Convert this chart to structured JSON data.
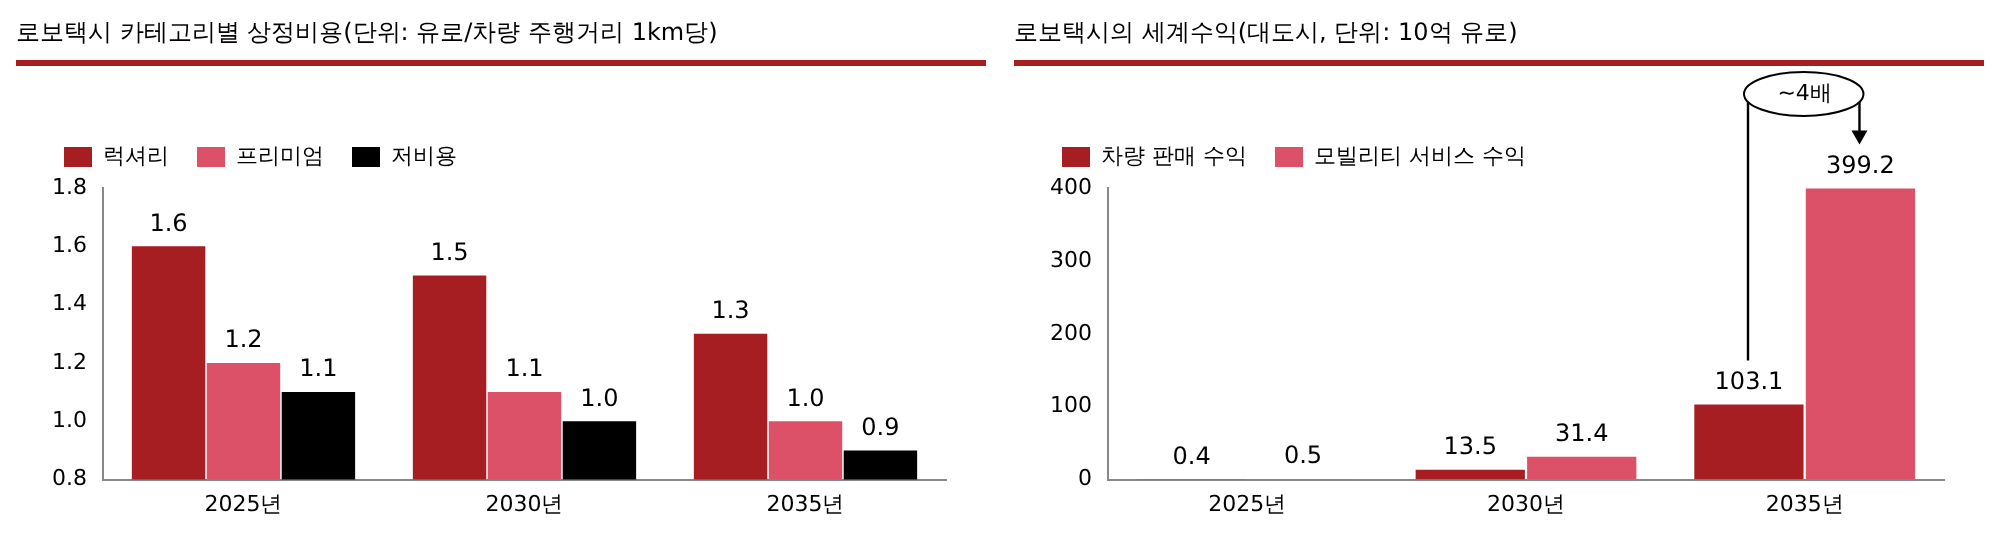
{
  "chart_data": [
    {
      "type": "bar",
      "title": "로보택시 카테고리별 상정비용(단위: 유로/차량 주행거리 1km당)",
      "categories": [
        "2025년",
        "2030년",
        "2035년"
      ],
      "series": [
        {
          "name": "럭셔리",
          "color": "#a61e22",
          "values": [
            1.6,
            1.5,
            1.3
          ],
          "value_labels": [
            "1.6",
            "1.5",
            "1.3"
          ]
        },
        {
          "name": "프리미엄",
          "color": "#dc5068",
          "values": [
            1.2,
            1.1,
            1.0
          ],
          "value_labels": [
            "1.2",
            "1.1",
            "1.0"
          ]
        },
        {
          "name": "저비용",
          "color": "#000000",
          "values": [
            1.1,
            1.0,
            0.9
          ],
          "value_labels": [
            "1.1",
            "1.0",
            "0.9"
          ]
        }
      ],
      "ylim": [
        0.8,
        1.8
      ],
      "yticks": [
        {
          "value": 0.8,
          "label": "0.8"
        },
        {
          "value": 1,
          "label": "1.0"
        },
        {
          "value": 1.2,
          "label": "1.2"
        },
        {
          "value": 1.4,
          "label": "1.4"
        },
        {
          "value": 1.6,
          "label": "1.6"
        },
        {
          "value": 1.8,
          "label": "1.8"
        }
      ],
      "grid": false,
      "legend": "top left"
    },
    {
      "type": "bar",
      "title": "로보택시의 세계수익(대도시, 단위: 10억 유로)",
      "categories": [
        "2025년",
        "2030년",
        "2035년"
      ],
      "series": [
        {
          "name": "차량 판매 수익",
          "color": "#a61e22",
          "values": [
            0.4,
            13.5,
            103.1
          ],
          "value_labels": [
            "0.4",
            "13.5",
            "103.1"
          ]
        },
        {
          "name": "모빌리티 서비스 수익",
          "color": "#dc5068",
          "values": [
            0.5,
            31.4,
            399.2
          ],
          "value_labels": [
            "0.5",
            "31.4",
            "399.2"
          ]
        }
      ],
      "ylim": [
        0,
        400
      ],
      "yticks": [
        0,
        100,
        200,
        300,
        400
      ],
      "annotations": [
        "~4배"
      ],
      "grid": false,
      "legend": "top left"
    }
  ]
}
